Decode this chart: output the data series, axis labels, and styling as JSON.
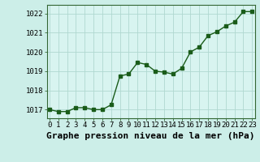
{
  "x": [
    0,
    1,
    2,
    3,
    4,
    5,
    6,
    7,
    8,
    9,
    10,
    11,
    12,
    13,
    14,
    15,
    16,
    17,
    18,
    19,
    20,
    21,
    22,
    23
  ],
  "y": [
    1017.0,
    1016.9,
    1016.9,
    1017.1,
    1017.1,
    1017.0,
    1017.0,
    1017.25,
    1018.75,
    1018.85,
    1019.45,
    1019.35,
    1019.0,
    1018.95,
    1018.85,
    1019.15,
    1020.0,
    1020.25,
    1020.85,
    1021.05,
    1021.35,
    1021.55,
    1022.1,
    1022.1
  ],
  "line_color": "#1a5c1a",
  "marker": "s",
  "marker_size": 2.5,
  "line_width": 1.0,
  "background_color": "#cceee8",
  "plot_bg_color": "#d8f4f0",
  "grid_color": "#b0d8d0",
  "xlabel": "Graphe pression niveau de la mer (hPa)",
  "xlabel_fontsize": 8,
  "ylabel_ticks": [
    1017,
    1018,
    1019,
    1020,
    1021,
    1022
  ],
  "xtick_labels": [
    "0",
    "1",
    "2",
    "3",
    "4",
    "5",
    "6",
    "7",
    "8",
    "9",
    "10",
    "11",
    "12",
    "13",
    "14",
    "15",
    "16",
    "17",
    "18",
    "19",
    "20",
    "21",
    "22",
    "23"
  ],
  "xlim": [
    -0.3,
    23.3
  ],
  "ylim": [
    1016.55,
    1022.45
  ],
  "tick_fontsize": 6.5,
  "spine_color": "#336633"
}
